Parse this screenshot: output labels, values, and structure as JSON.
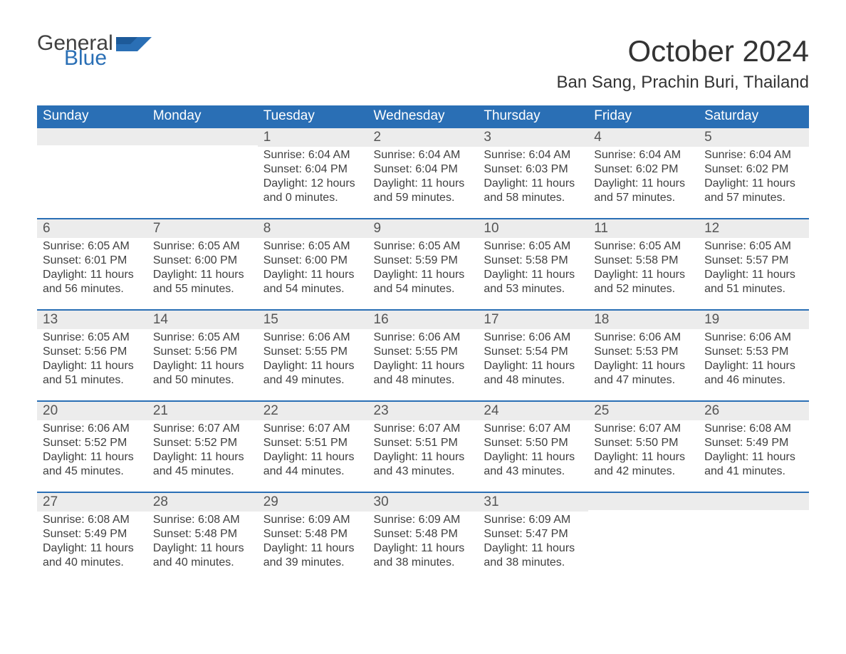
{
  "logo": {
    "text1": "General",
    "text2": "Blue",
    "icon_color": "#2a6fb5"
  },
  "title": "October 2024",
  "location": "Ban Sang, Prachin Buri, Thailand",
  "colors": {
    "header_bg": "#2a6fb5",
    "header_text": "#ffffff",
    "daynum_bg": "#ececec",
    "row_border": "#2a6fb5",
    "body_text": "#404040",
    "page_bg": "#ffffff"
  },
  "columns": [
    "Sunday",
    "Monday",
    "Tuesday",
    "Wednesday",
    "Thursday",
    "Friday",
    "Saturday"
  ],
  "weeks": [
    [
      null,
      null,
      {
        "n": "1",
        "sr": "6:04 AM",
        "ss": "6:04 PM",
        "dl": "12 hours and 0 minutes."
      },
      {
        "n": "2",
        "sr": "6:04 AM",
        "ss": "6:04 PM",
        "dl": "11 hours and 59 minutes."
      },
      {
        "n": "3",
        "sr": "6:04 AM",
        "ss": "6:03 PM",
        "dl": "11 hours and 58 minutes."
      },
      {
        "n": "4",
        "sr": "6:04 AM",
        "ss": "6:02 PM",
        "dl": "11 hours and 57 minutes."
      },
      {
        "n": "5",
        "sr": "6:04 AM",
        "ss": "6:02 PM",
        "dl": "11 hours and 57 minutes."
      }
    ],
    [
      {
        "n": "6",
        "sr": "6:05 AM",
        "ss": "6:01 PM",
        "dl": "11 hours and 56 minutes."
      },
      {
        "n": "7",
        "sr": "6:05 AM",
        "ss": "6:00 PM",
        "dl": "11 hours and 55 minutes."
      },
      {
        "n": "8",
        "sr": "6:05 AM",
        "ss": "6:00 PM",
        "dl": "11 hours and 54 minutes."
      },
      {
        "n": "9",
        "sr": "6:05 AM",
        "ss": "5:59 PM",
        "dl": "11 hours and 54 minutes."
      },
      {
        "n": "10",
        "sr": "6:05 AM",
        "ss": "5:58 PM",
        "dl": "11 hours and 53 minutes."
      },
      {
        "n": "11",
        "sr": "6:05 AM",
        "ss": "5:58 PM",
        "dl": "11 hours and 52 minutes."
      },
      {
        "n": "12",
        "sr": "6:05 AM",
        "ss": "5:57 PM",
        "dl": "11 hours and 51 minutes."
      }
    ],
    [
      {
        "n": "13",
        "sr": "6:05 AM",
        "ss": "5:56 PM",
        "dl": "11 hours and 51 minutes."
      },
      {
        "n": "14",
        "sr": "6:05 AM",
        "ss": "5:56 PM",
        "dl": "11 hours and 50 minutes."
      },
      {
        "n": "15",
        "sr": "6:06 AM",
        "ss": "5:55 PM",
        "dl": "11 hours and 49 minutes."
      },
      {
        "n": "16",
        "sr": "6:06 AM",
        "ss": "5:55 PM",
        "dl": "11 hours and 48 minutes."
      },
      {
        "n": "17",
        "sr": "6:06 AM",
        "ss": "5:54 PM",
        "dl": "11 hours and 48 minutes."
      },
      {
        "n": "18",
        "sr": "6:06 AM",
        "ss": "5:53 PM",
        "dl": "11 hours and 47 minutes."
      },
      {
        "n": "19",
        "sr": "6:06 AM",
        "ss": "5:53 PM",
        "dl": "11 hours and 46 minutes."
      }
    ],
    [
      {
        "n": "20",
        "sr": "6:06 AM",
        "ss": "5:52 PM",
        "dl": "11 hours and 45 minutes."
      },
      {
        "n": "21",
        "sr": "6:07 AM",
        "ss": "5:52 PM",
        "dl": "11 hours and 45 minutes."
      },
      {
        "n": "22",
        "sr": "6:07 AM",
        "ss": "5:51 PM",
        "dl": "11 hours and 44 minutes."
      },
      {
        "n": "23",
        "sr": "6:07 AM",
        "ss": "5:51 PM",
        "dl": "11 hours and 43 minutes."
      },
      {
        "n": "24",
        "sr": "6:07 AM",
        "ss": "5:50 PM",
        "dl": "11 hours and 43 minutes."
      },
      {
        "n": "25",
        "sr": "6:07 AM",
        "ss": "5:50 PM",
        "dl": "11 hours and 42 minutes."
      },
      {
        "n": "26",
        "sr": "6:08 AM",
        "ss": "5:49 PM",
        "dl": "11 hours and 41 minutes."
      }
    ],
    [
      {
        "n": "27",
        "sr": "6:08 AM",
        "ss": "5:49 PM",
        "dl": "11 hours and 40 minutes."
      },
      {
        "n": "28",
        "sr": "6:08 AM",
        "ss": "5:48 PM",
        "dl": "11 hours and 40 minutes."
      },
      {
        "n": "29",
        "sr": "6:09 AM",
        "ss": "5:48 PM",
        "dl": "11 hours and 39 minutes."
      },
      {
        "n": "30",
        "sr": "6:09 AM",
        "ss": "5:48 PM",
        "dl": "11 hours and 38 minutes."
      },
      {
        "n": "31",
        "sr": "6:09 AM",
        "ss": "5:47 PM",
        "dl": "11 hours and 38 minutes."
      },
      null,
      null
    ]
  ],
  "labels": {
    "sunrise": "Sunrise:",
    "sunset": "Sunset:",
    "daylight": "Daylight:"
  }
}
